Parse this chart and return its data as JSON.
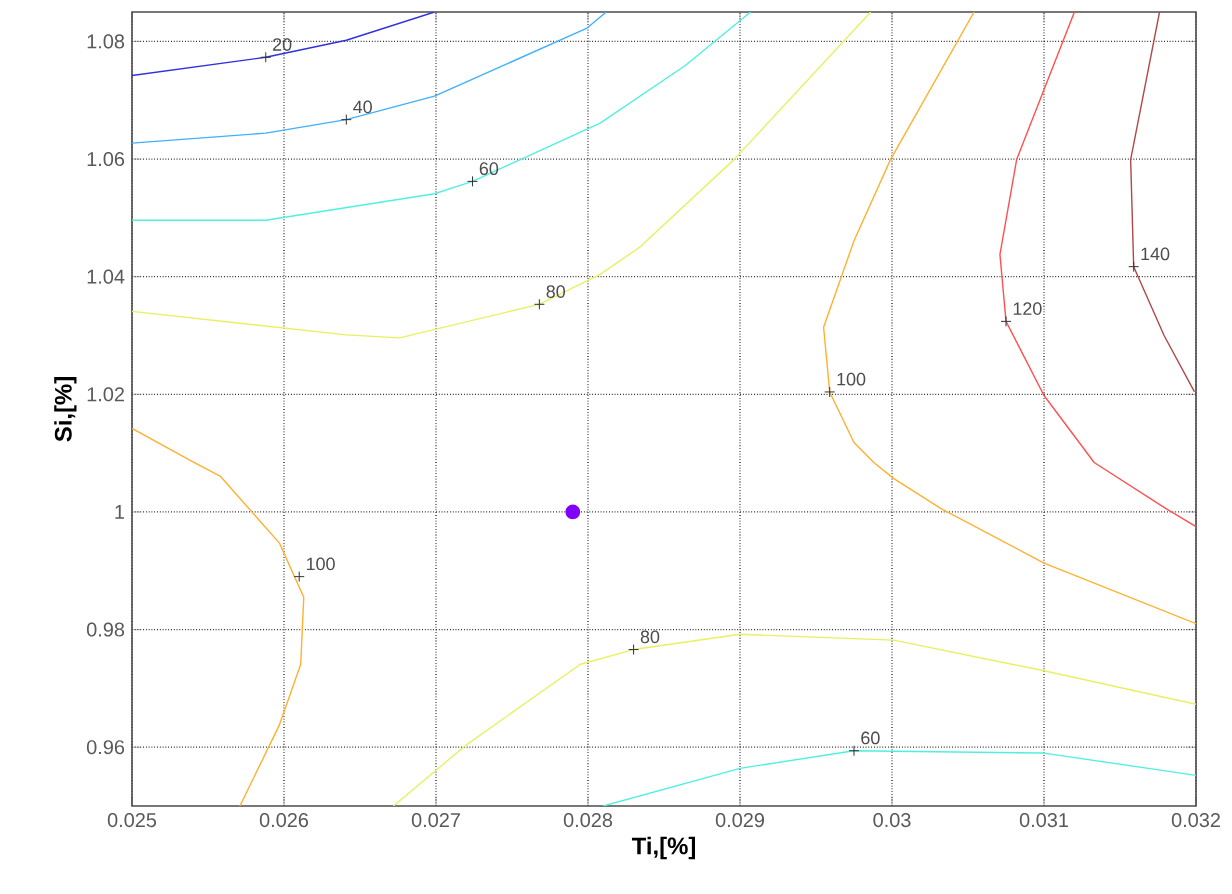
{
  "chart_data": {
    "type": "line",
    "xlabel": "Ti,[%]",
    "ylabel": "Si,[%]",
    "xlim": [
      0.025,
      0.032
    ],
    "ylim": [
      0.95,
      1.085
    ],
    "xticks": [
      0.025,
      0.026,
      0.027,
      0.028,
      0.029,
      0.03,
      0.031,
      0.032
    ],
    "yticks": [
      0.96,
      0.98,
      1,
      1.02,
      1.04,
      1.06,
      1.08
    ],
    "grid": true,
    "line_style": "solid",
    "series": [
      {
        "type": "line",
        "color": "#3030e0",
        "x": [
          0.025,
          0.02588,
          0.02641,
          0.02699
        ],
        "values": [
          1.0742,
          1.0773,
          1.0802,
          1.085
        ]
      },
      {
        "type": "line",
        "color": "#40b0ff",
        "x": [
          0.025,
          0.02588,
          0.02641,
          0.02699,
          0.02799,
          0.02812
        ],
        "values": [
          1.0627,
          1.0644,
          1.0667,
          1.0707,
          1.0822,
          1.085
        ]
      },
      {
        "type": "line",
        "color": "#50f0e0",
        "x": [
          0.025,
          0.02588,
          0.02699,
          0.02724,
          0.02808,
          0.02864,
          0.02907,
          null,
          0.0281,
          0.029,
          0.02975,
          0.031,
          0.032
        ],
        "values": [
          1.0496,
          1.0496,
          1.0541,
          1.0562,
          1.0661,
          1.0759,
          1.085,
          null,
          0.95,
          0.9564,
          0.9594,
          0.959,
          0.9552
        ]
      },
      {
        "type": "line",
        "color": "#e8f060",
        "x": [
          0.025,
          0.02641,
          0.02676,
          0.02768,
          0.02808,
          0.02834,
          0.02896,
          0.02986,
          null,
          0.02672,
          0.0272,
          0.02795,
          0.0283,
          0.029,
          0.03001,
          0.031,
          0.032
        ],
        "values": [
          1.0341,
          1.0301,
          1.0296,
          1.0353,
          1.0404,
          1.045,
          1.0599,
          1.085,
          null,
          0.95,
          0.9604,
          0.9741,
          0.9766,
          0.9792,
          0.9782,
          0.973,
          0.9673
        ]
      },
      {
        "type": "line",
        "color": "#ffb030",
        "x": [
          0.03054,
          0.02999,
          0.02975,
          0.02955,
          0.02959,
          0.02975,
          0.02988,
          0.03001,
          0.03032,
          0.031,
          0.032,
          null,
          0.025,
          0.02541,
          0.02558,
          0.02597,
          0.02613,
          0.02611,
          0.02597,
          0.02571
        ],
        "values": [
          1.085,
          1.0599,
          1.0461,
          1.0314,
          1.0204,
          1.0118,
          1.0084,
          1.0057,
          1.0006,
          0.9913,
          0.981,
          null,
          1.0142,
          1.0084,
          1.0061,
          0.9947,
          0.9855,
          0.9741,
          0.9638,
          0.95
        ]
      },
      {
        "type": "line",
        "color": "#ff5050",
        "x": [
          0.0312,
          0.03082,
          0.03071,
          0.03075,
          0.031,
          0.03133,
          0.0318,
          0.032
        ],
        "values": [
          1.085,
          1.0599,
          1.0438,
          1.0324,
          1.0198,
          1.0084,
          1.0006,
          0.9975
        ]
      },
      {
        "type": "line",
        "color": "#b04848",
        "x": [
          0.03176,
          0.03157,
          0.03159,
          0.03179,
          0.03199
        ],
        "values": [
          1.085,
          1.0599,
          1.0417,
          1.03,
          1.0204
        ]
      },
      {
        "type": "scatter",
        "marker": "circle",
        "color": "#8000ff",
        "x": [
          0.0279
        ],
        "values": [
          1.0
        ]
      }
    ],
    "annotations": [
      {
        "text": "20",
        "x": 0.02588,
        "y": 1.0773
      },
      {
        "text": "40",
        "x": 0.02641,
        "y": 1.0667
      },
      {
        "text": "60",
        "x": 0.02724,
        "y": 1.0562
      },
      {
        "text": "80",
        "x": 0.02768,
        "y": 1.0353
      },
      {
        "text": "100",
        "x": 0.02959,
        "y": 1.0204
      },
      {
        "text": "120",
        "x": 0.03075,
        "y": 1.0324
      },
      {
        "text": "140",
        "x": 0.03159,
        "y": 1.0417
      },
      {
        "text": "100",
        "x": 0.0261,
        "y": 0.989
      },
      {
        "text": "80",
        "x": 0.0283,
        "y": 0.9766
      },
      {
        "text": "60",
        "x": 0.02975,
        "y": 0.9594
      }
    ]
  }
}
